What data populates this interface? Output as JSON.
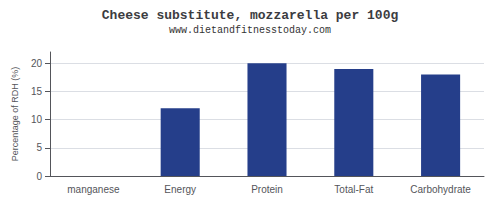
{
  "chart_data": {
    "type": "bar",
    "title": "Cheese substitute, mozzarella per 100g",
    "subtitle": "www.dietandfitnesstoday.com",
    "categories": [
      "manganese",
      "Energy",
      "Protein",
      "Total-Fat",
      "Carbohydrate"
    ],
    "values": [
      0,
      12,
      20,
      19,
      18
    ],
    "color": "#253e8a",
    "ylabel": "Percentage of RDH (%)",
    "ylim": [
      0,
      22
    ],
    "yticks": [
      0,
      5,
      10,
      15,
      20
    ],
    "grid": true
  }
}
